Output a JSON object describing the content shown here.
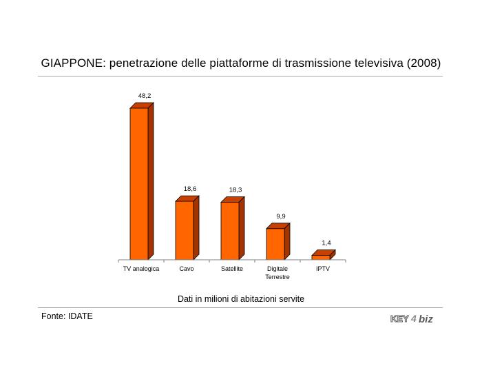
{
  "title": "GIAPPONE: penetrazione delle piattaforme di trasmissione televisiva (2008)",
  "subtitle": "Dati in milioni di abitazioni servite",
  "source": "Fonte: IDATE",
  "logo_text": "KEY4biz",
  "colors": {
    "bar_front": "#ff6600",
    "bar_side": "#a33300",
    "bar_top": "#c84000",
    "axis": "#808080"
  },
  "chart_data": {
    "type": "bar",
    "style": "3d-column",
    "categories": [
      "TV analogica",
      "Cavo",
      "Satellite",
      "Digitale\nTerrestre",
      "IPTV"
    ],
    "values": [
      48.2,
      18.6,
      18.3,
      9.9,
      1.4
    ],
    "value_labels": [
      "48,2",
      "18,6",
      "18,3",
      "9,9",
      "1,4"
    ],
    "title": "GIAPPONE: penetrazione delle piattaforme di trasmissione televisiva (2008)",
    "xlabel": "Dati in milioni di abitazioni servite",
    "ylabel": "",
    "ylim": [
      0,
      50
    ],
    "grid": false,
    "legend": "none"
  }
}
